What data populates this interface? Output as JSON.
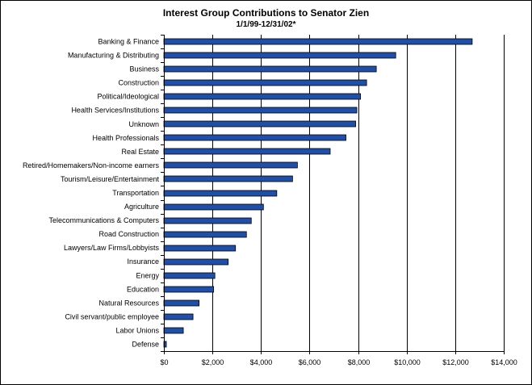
{
  "chart_data": {
    "type": "bar",
    "orientation": "horizontal",
    "title": "Interest Group Contributions to Senator Zien",
    "subtitle": "1/1/99-12/31/02*",
    "xlabel": "",
    "ylabel": "",
    "xlim": [
      0,
      14000
    ],
    "x_ticks": [
      0,
      2000,
      4000,
      6000,
      8000,
      10000,
      12000,
      14000
    ],
    "x_tick_labels": [
      "$0",
      "$2,000",
      "$4,000",
      "$6,000",
      "$8,000",
      "$10,000",
      "$12,000",
      "$14,000"
    ],
    "grid": true,
    "legend": "none",
    "bar_color": "#1f4fa8",
    "categories": [
      "Banking & Finance",
      "Manufacturing & Distributing",
      "Business",
      "Construction",
      "Political/Ideological",
      "Health Services/Institutions",
      "Unknown",
      "Health Professionals",
      "Real Estate",
      "Retired/Homemakers/Non-income earners",
      "Tourism/Leisure/Entertainment",
      "Transportation",
      "Agriculture",
      "Telecommunications & Computers",
      "Road Construction",
      "Lawyers/Law Firms/Lobbyists",
      "Insurance",
      "Energy",
      "Education",
      "Natural Resources",
      "Civil servant/public employee",
      "Labor Unions",
      "Defense"
    ],
    "values": [
      12700,
      9550,
      8750,
      8350,
      8100,
      7950,
      7900,
      7500,
      6850,
      5500,
      5300,
      4650,
      4100,
      3600,
      3400,
      2950,
      2650,
      2100,
      2050,
      1450,
      1200,
      800,
      100
    ]
  }
}
